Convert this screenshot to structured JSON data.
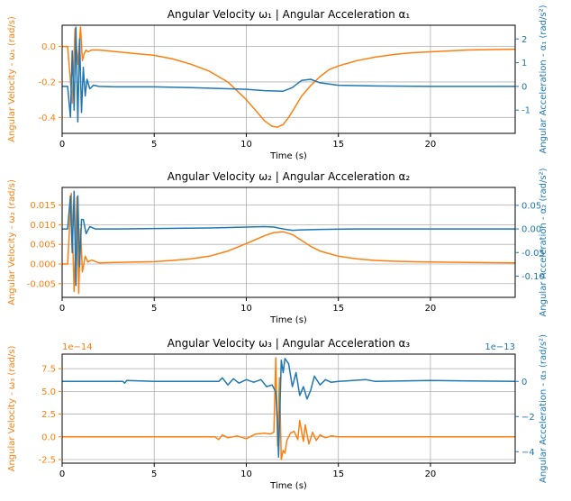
{
  "colors": {
    "omega": "#ff7f0e",
    "alpha": "#1f77b4",
    "grid": "#b0b0b0",
    "axis": "#000000"
  },
  "chart_data": [
    {
      "type": "line",
      "title": "Angular Velocity ω₁ | Angular Acceleration α₁",
      "xlabel": "Time (s)",
      "ylabel_left": "Angular Velocity - ω₁ (rad/s)",
      "ylabel_right": "Angular Acceleration - α₁ (rad/s²)",
      "xlim": [
        0,
        24.6
      ],
      "ylim_left": [
        -0.49,
        0.12
      ],
      "ylim_right": [
        -1.98,
        2.58
      ],
      "xticks": [
        0,
        5,
        10,
        15,
        20
      ],
      "xtick_labels": [
        "0",
        "5",
        "10",
        "15",
        "20"
      ],
      "yticks_left": [
        0.0,
        -0.2,
        -0.4
      ],
      "ytick_labels_left": [
        "0.0",
        "-0.2",
        "-0.4"
      ],
      "yticks_right": [
        2,
        1,
        0,
        -1
      ],
      "ytick_labels_right": [
        "2",
        "1",
        "0",
        "-1"
      ],
      "grid": true,
      "series": [
        {
          "axis": "left",
          "x": [
            0,
            0.3,
            0.55,
            0.7,
            0.85,
            1.0,
            1.1,
            1.2,
            1.3,
            1.4,
            1.6,
            2.0,
            3,
            4,
            5,
            6,
            7,
            8,
            9,
            10,
            10.5,
            11,
            11.4,
            11.7,
            12,
            12.3,
            12.6,
            13,
            13.5,
            14,
            14.5,
            15,
            16,
            17,
            18,
            19,
            20,
            21,
            22,
            23,
            24.6
          ],
          "y": [
            0,
            0,
            -0.32,
            0.1,
            -0.1,
            0.11,
            -0.08,
            -0.04,
            -0.02,
            -0.03,
            -0.02,
            -0.02,
            -0.03,
            -0.04,
            -0.05,
            -0.07,
            -0.1,
            -0.14,
            -0.2,
            -0.3,
            -0.36,
            -0.42,
            -0.45,
            -0.455,
            -0.44,
            -0.4,
            -0.35,
            -0.28,
            -0.22,
            -0.17,
            -0.13,
            -0.11,
            -0.08,
            -0.06,
            -0.045,
            -0.035,
            -0.03,
            -0.025,
            -0.02,
            -0.018,
            -0.015
          ]
        },
        {
          "axis": "right",
          "x": [
            0,
            0.3,
            0.45,
            0.55,
            0.65,
            0.75,
            0.85,
            0.95,
            1.05,
            1.15,
            1.25,
            1.35,
            1.5,
            1.7,
            2.0,
            3,
            5,
            7,
            9,
            10,
            11,
            12,
            12.5,
            13,
            13.5,
            14,
            15,
            17,
            20,
            24.6
          ],
          "y": [
            0,
            0,
            -1.3,
            1.5,
            -1.0,
            2.5,
            -1.5,
            2.0,
            -1.1,
            0.8,
            -0.4,
            0.3,
            -0.1,
            0.05,
            0,
            -0.02,
            -0.02,
            -0.05,
            -0.1,
            -0.12,
            -0.18,
            -0.2,
            -0.05,
            0.25,
            0.3,
            0.15,
            0.05,
            0.02,
            0,
            0
          ]
        }
      ]
    },
    {
      "type": "line",
      "title": "Angular Velocity ω₂ | Angular Acceleration α₂",
      "xlabel": "Time (s)",
      "ylabel_left": "Angular Velocity - ω₂ (rad/s)",
      "ylabel_right": "Angular Acceleration - α₂ (rad/s²)",
      "xlim": [
        0,
        24.6
      ],
      "ylim_left": [
        -0.0085,
        0.0195
      ],
      "ylim_right": [
        -0.145,
        0.088
      ],
      "xticks": [
        0,
        5,
        10,
        15,
        20
      ],
      "xtick_labels": [
        "0",
        "5",
        "10",
        "15",
        "20"
      ],
      "yticks_left": [
        0.015,
        0.01,
        0.005,
        0.0,
        -0.005
      ],
      "ytick_labels_left": [
        "0.015",
        "0.010",
        "0.005",
        "0.000",
        "-0.005"
      ],
      "yticks_right": [
        0.05,
        0.0,
        -0.05,
        -0.1
      ],
      "ytick_labels_right": [
        "0.05",
        "0.00",
        "-0.05",
        "-0.10"
      ],
      "grid": true,
      "series": [
        {
          "axis": "left",
          "x": [
            0,
            0.3,
            0.5,
            0.65,
            0.8,
            0.9,
            1.0,
            1.1,
            1.25,
            1.4,
            1.6,
            2,
            3,
            4,
            5,
            6,
            7,
            8,
            9,
            10,
            10.5,
            11,
            11.5,
            12,
            12.5,
            13,
            13.5,
            14,
            15,
            16,
            17,
            18,
            19,
            20,
            22,
            24.6
          ],
          "y": [
            0,
            0,
            0.018,
            -0.007,
            0.017,
            -0.0075,
            0.009,
            -0.002,
            0.002,
            0.0005,
            0.001,
            0.0003,
            0.0004,
            0.0005,
            0.0006,
            0.0009,
            0.0013,
            0.002,
            0.0033,
            0.0052,
            0.0062,
            0.0072,
            0.008,
            0.0082,
            0.0075,
            0.006,
            0.0045,
            0.0033,
            0.002,
            0.0013,
            0.0009,
            0.0007,
            0.0006,
            0.0005,
            0.0004,
            0.0003
          ]
        },
        {
          "axis": "right",
          "x": [
            0,
            0.3,
            0.45,
            0.55,
            0.65,
            0.75,
            0.85,
            0.95,
            1.05,
            1.15,
            1.3,
            1.5,
            1.8,
            2.2,
            3,
            5,
            8,
            10,
            11,
            11.5,
            12,
            12.5,
            13,
            14,
            16,
            20,
            24.6
          ],
          "y": [
            0,
            0,
            0.07,
            -0.05,
            0.08,
            -0.12,
            0.07,
            -0.08,
            0.02,
            0.02,
            -0.01,
            0.005,
            0,
            0,
            0,
            0.001,
            0.002,
            0.004,
            0.005,
            0.004,
            0,
            -0.003,
            -0.002,
            -0.001,
            0,
            0,
            0
          ]
        }
      ]
    },
    {
      "type": "line",
      "title": "Angular Velocity ω₃ | Angular Acceleration α₃",
      "xlabel": "Time (s)",
      "ylabel_left": "Angular Velocity - ω₃ (rad/s)",
      "ylabel_right": "Angular Acceleration - α₃ (rad/s²)",
      "left_offset_label": "1e−14",
      "right_offset_label": "1e−13",
      "xlim": [
        0,
        24.6
      ],
      "ylim_left": [
        -2.9,
        9.1
      ],
      "ylim_right": [
        -4.65,
        1.55
      ],
      "xticks": [
        0,
        5,
        10,
        15,
        20
      ],
      "xtick_labels": [
        "0",
        "5",
        "10",
        "15",
        "20"
      ],
      "yticks_left": [
        7.5,
        5.0,
        2.5,
        0.0,
        -2.5
      ],
      "ytick_labels_left": [
        "7.5",
        "5.0",
        "2.5",
        "0.0",
        "-2.5"
      ],
      "yticks_right": [
        0,
        -2,
        -4
      ],
      "ytick_labels_right": [
        "0",
        "−2",
        "−4"
      ],
      "grid": true,
      "series": [
        {
          "axis": "left",
          "x": [
            0,
            7,
            8.3,
            8.5,
            8.7,
            9,
            9.5,
            10,
            10.5,
            11,
            11.3,
            11.5,
            11.6,
            11.7,
            11.8,
            11.9,
            12.0,
            12.1,
            12.2,
            12.4,
            12.6,
            12.8,
            12.9,
            13.0,
            13.1,
            13.2,
            13.4,
            13.6,
            13.8,
            14,
            14.3,
            14.6,
            15,
            17,
            20,
            24.6
          ],
          "y": [
            0,
            0,
            0,
            -0.3,
            0.2,
            -0.1,
            0.1,
            -0.2,
            0.3,
            0.4,
            0.3,
            0.5,
            8.7,
            -1.0,
            6.5,
            -2.5,
            -1.5,
            -1.8,
            -0.4,
            0.4,
            0.6,
            -0.3,
            1.8,
            0.6,
            -0.5,
            1.3,
            -0.8,
            0.5,
            -0.4,
            0.2,
            -0.1,
            0.1,
            0,
            0,
            0,
            0
          ]
        },
        {
          "axis": "right",
          "x": [
            0,
            3.3,
            3.4,
            3.5,
            5,
            7,
            8.5,
            8.7,
            9.0,
            9.3,
            9.6,
            10,
            10.4,
            10.8,
            11.1,
            11.4,
            11.6,
            11.7,
            11.75,
            11.8,
            11.9,
            12.0,
            12.1,
            12.3,
            12.5,
            12.7,
            12.9,
            13.1,
            13.3,
            13.5,
            13.7,
            14,
            14.3,
            14.6,
            15,
            16.5,
            17,
            20,
            24.6
          ],
          "y": [
            0,
            0,
            -0.1,
            0.05,
            0,
            0,
            0,
            0.2,
            -0.2,
            0.15,
            -0.1,
            0.1,
            -0.05,
            0.1,
            -0.3,
            -0.2,
            -0.6,
            -2.5,
            -4.3,
            -2.5,
            1.2,
            0.5,
            1.3,
            1.0,
            -0.3,
            0.5,
            -0.8,
            -0.3,
            -1.0,
            -0.5,
            0.3,
            -0.2,
            0.1,
            -0.05,
            0,
            0.1,
            0,
            0.05,
            0
          ]
        }
      ]
    }
  ]
}
